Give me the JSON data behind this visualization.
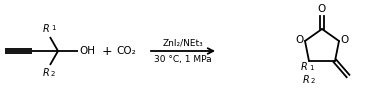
{
  "bg_color": "#ffffff",
  "line_color": "#000000",
  "text_color": "#000000",
  "arrow_above": "ZnI₂/NEt₃",
  "arrow_below": "30 °C, 1 MPa",
  "plus": "+",
  "co2": "CO₂",
  "oh": "OH",
  "r1_sup": "R",
  "r1_exp": "1",
  "r2_sup": "R",
  "r2_exp": "2",
  "o_label": "O",
  "lw": 1.3,
  "fig_width": 3.78,
  "fig_height": 1.03,
  "dpi": 100
}
